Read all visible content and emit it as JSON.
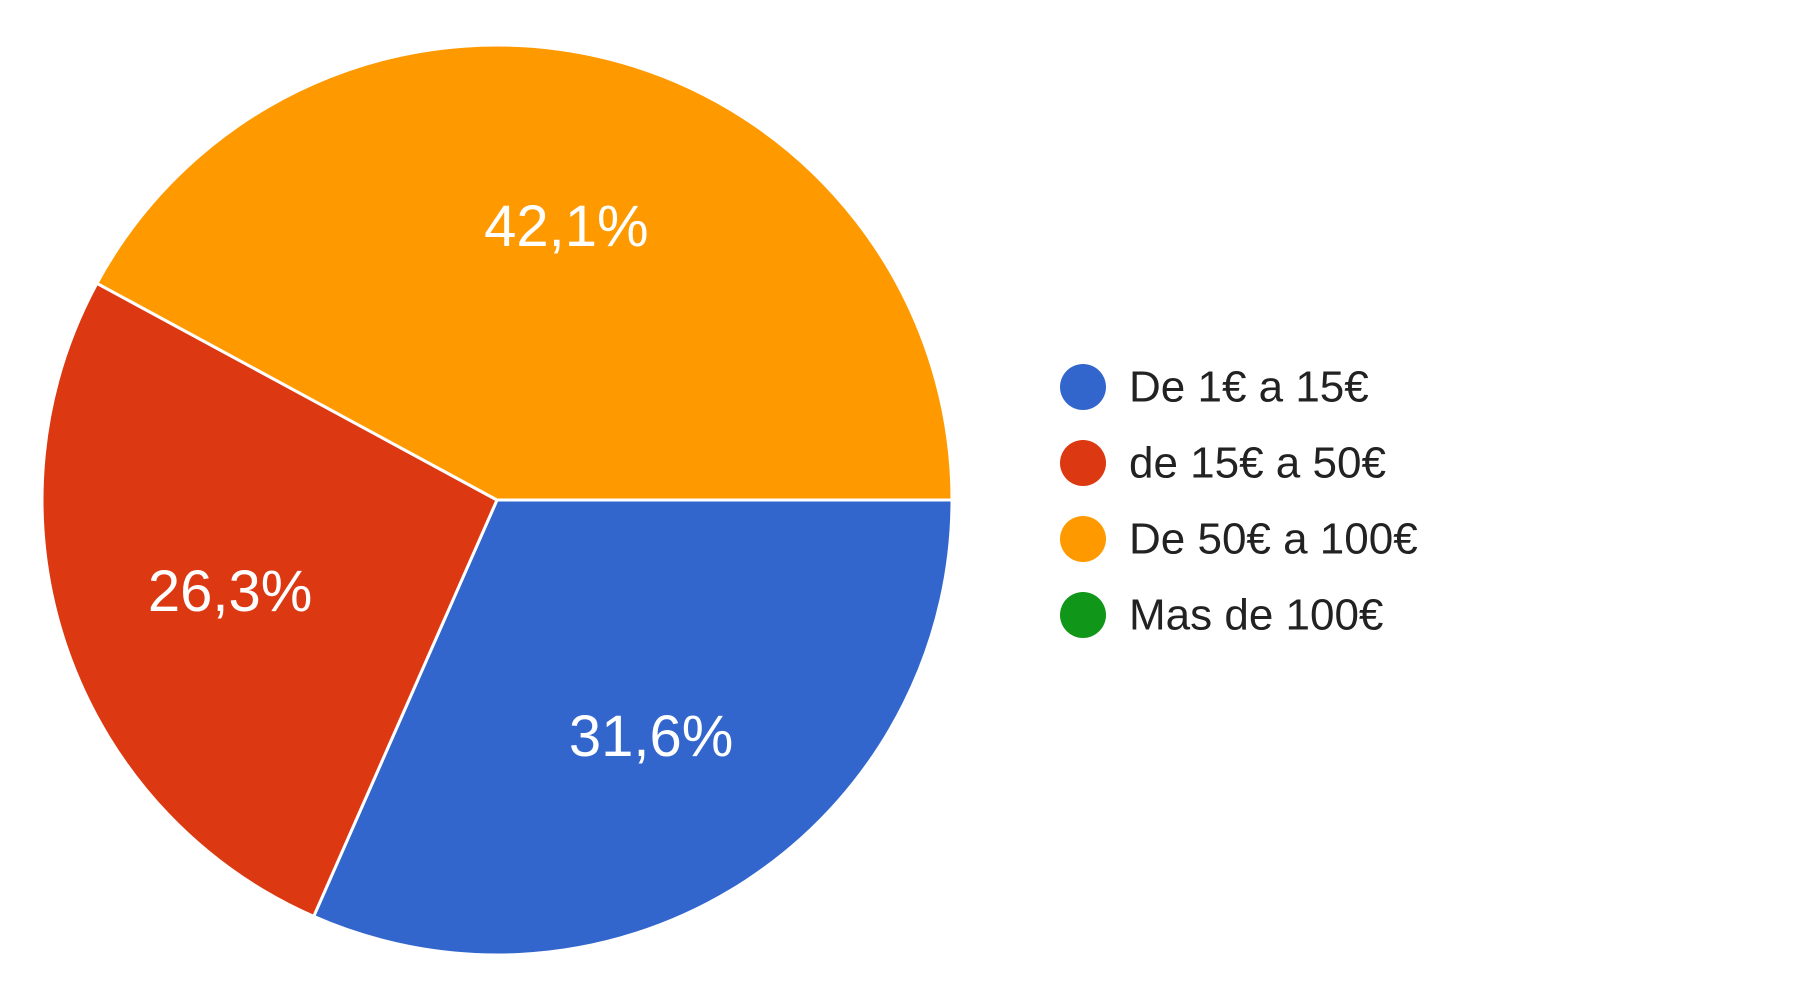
{
  "chart_data": {
    "type": "pie",
    "legend_position": "right",
    "slices": [
      {
        "label": "De 1€ a 15€",
        "value": 31.6,
        "value_label": "31,6%",
        "color": "#3366cc"
      },
      {
        "label": "de 15€ a 50€",
        "value": 26.3,
        "value_label": "26,3%",
        "color": "#dc3912"
      },
      {
        "label": "De 50€ a 100€",
        "value": 42.1,
        "value_label": "42,1%",
        "color": "#ff9900"
      },
      {
        "label": "Mas de 100€",
        "value": 0,
        "value_label": "",
        "color": "#109618"
      }
    ]
  }
}
